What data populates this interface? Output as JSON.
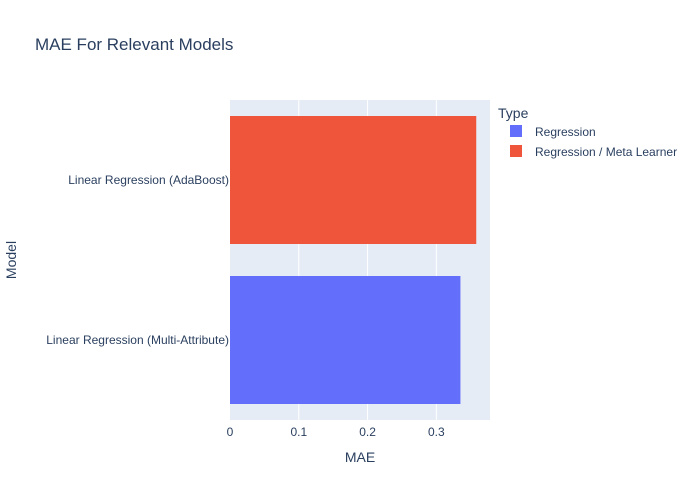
{
  "chart_data": {
    "type": "bar",
    "orientation": "horizontal",
    "title": "MAE For Relevant Models",
    "xlabel": "MAE",
    "ylabel": "Model",
    "xlim": [
      0,
      0.378
    ],
    "xticks": [
      0,
      0.1,
      0.2,
      0.3
    ],
    "xtick_labels": [
      "0",
      "0.1",
      "0.2",
      "0.3"
    ],
    "grid": true,
    "legend_position": "top-right",
    "legend_title": "Type",
    "categories": [
      "Linear Regression (Multi-Attribute)",
      "Linear Regression (AdaBoost)"
    ],
    "series": [
      {
        "name": "Regression",
        "color": "#636efa",
        "values": [
          0.335,
          null
        ]
      },
      {
        "name": "Regression / Meta Learner",
        "color": "#ef553b",
        "values": [
          null,
          0.358
        ]
      }
    ],
    "colors": {
      "plot_bg": "#e5ecf6",
      "text": "#2a3f5f",
      "grid": "#ffffff"
    }
  }
}
